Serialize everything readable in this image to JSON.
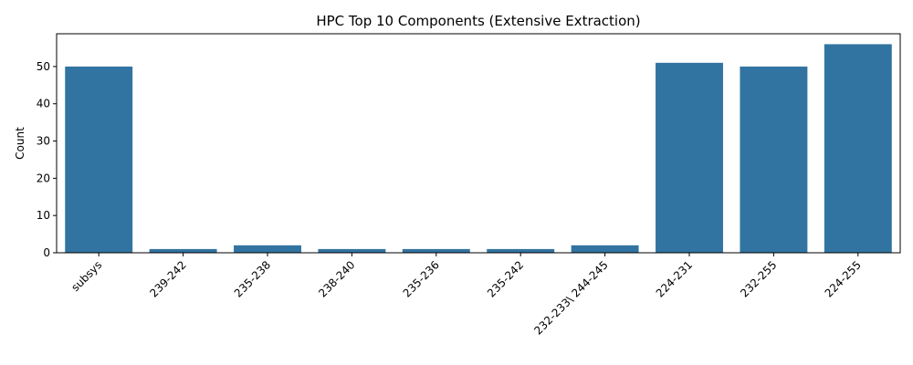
{
  "chart_data": {
    "type": "bar",
    "title": "HPC Top 10 Components (Extensive Extraction)",
    "xlabel": "",
    "ylabel": "Count",
    "categories": [
      "subsys",
      "239-242",
      "235-238",
      "238-240",
      "235-236",
      "235-242",
      "232-233\\ 244-245",
      "224-231",
      "232-255",
      "224-255"
    ],
    "values": [
      50,
      1,
      2,
      1,
      1,
      1,
      2,
      51,
      50,
      56
    ],
    "ylim": [
      0,
      58.8
    ],
    "yticks": [
      0,
      10,
      20,
      30,
      40,
      50
    ],
    "bar_color": "#3274a1",
    "grid": false,
    "legend": "none"
  }
}
